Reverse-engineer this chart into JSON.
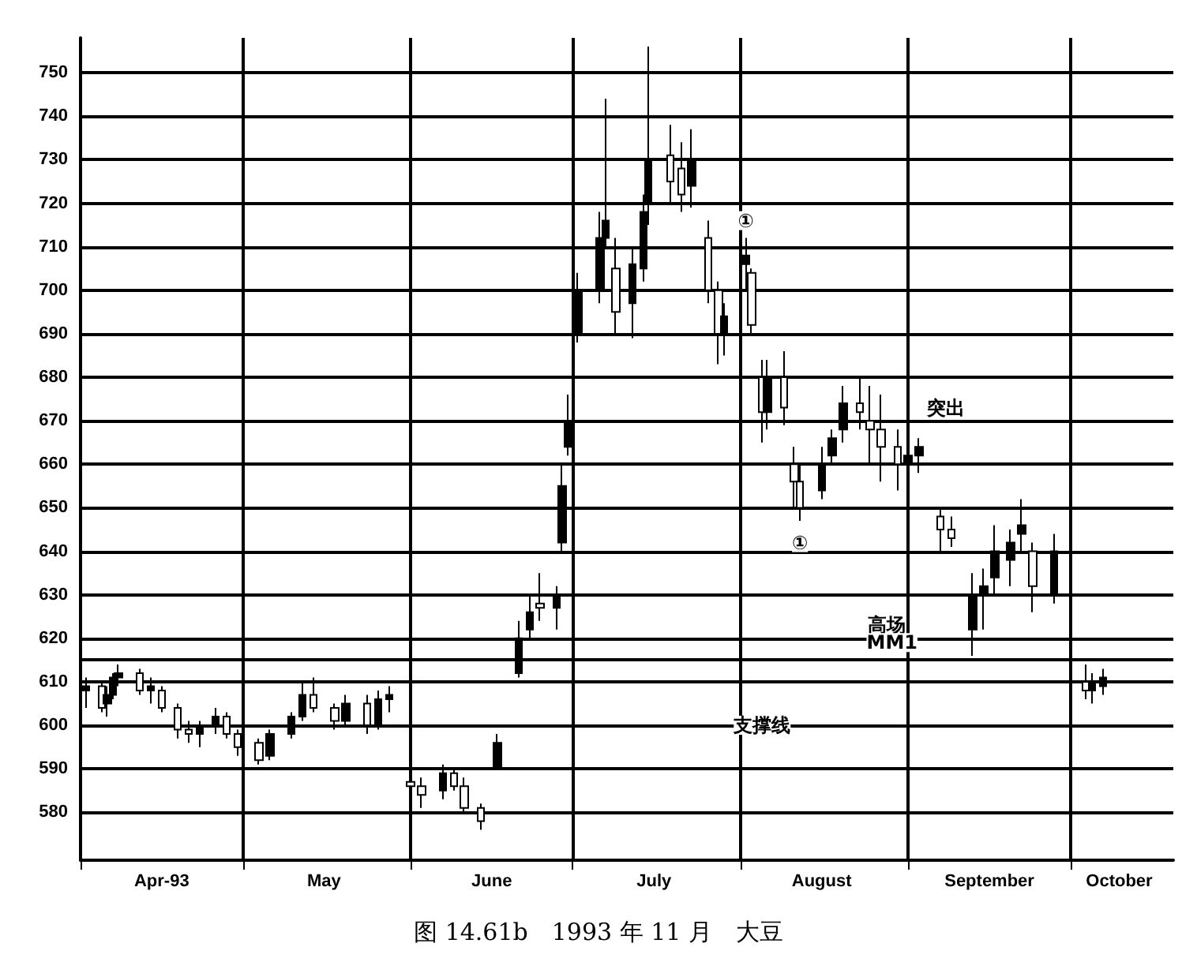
{
  "chart_data": {
    "type": "candlestick",
    "title": "图 14.61b　1993 年 11 月　大豆",
    "x": [
      "1993-04-02",
      "1993-04-05",
      "1993-04-06",
      "1993-04-07",
      "1993-04-08",
      "1993-04-12",
      "1993-04-14",
      "1993-04-16",
      "1993-04-19",
      "1993-04-21",
      "1993-04-23",
      "1993-04-26",
      "1993-04-28",
      "1993-04-30",
      "1993-05-04",
      "1993-05-06",
      "1993-05-10",
      "1993-05-12",
      "1993-05-14",
      "1993-05-18",
      "1993-05-20",
      "1993-05-24",
      "1993-05-26",
      "1993-05-28",
      "1993-06-01",
      "1993-06-03",
      "1993-06-07",
      "1993-06-09",
      "1993-06-11",
      "1993-06-14",
      "1993-06-17",
      "1993-06-21",
      "1993-06-23",
      "1993-06-25",
      "1993-06-28",
      "1993-06-29",
      "1993-06-30",
      "1993-07-02",
      "1993-07-06",
      "1993-07-07",
      "1993-07-09",
      "1993-07-12",
      "1993-07-14",
      "1993-07-15",
      "1993-07-19",
      "1993-07-21",
      "1993-07-23",
      "1993-07-26",
      "1993-07-28",
      "1993-07-29",
      "1993-08-02",
      "1993-08-03",
      "1993-08-05",
      "1993-08-06",
      "1993-08-09",
      "1993-08-11",
      "1993-08-12",
      "1993-08-16",
      "1993-08-18",
      "1993-08-20",
      "1993-08-23",
      "1993-08-25",
      "1993-08-27",
      "1993-08-30",
      "1993-09-01",
      "1993-09-03",
      "1993-09-07",
      "1993-09-09",
      "1993-09-13",
      "1993-09-15",
      "1993-09-17",
      "1993-09-20",
      "1993-09-22",
      "1993-09-24",
      "1993-09-28",
      "1993-10-04",
      "1993-10-05",
      "1993-10-07"
    ],
    "ohlc": [
      [
        608,
        611,
        604,
        609
      ],
      [
        609,
        610,
        603,
        604
      ],
      [
        605,
        609,
        602,
        607
      ],
      [
        607,
        612,
        606,
        611
      ],
      [
        611,
        614,
        609,
        612
      ],
      [
        612,
        613,
        607,
        608
      ],
      [
        608,
        611,
        605,
        609
      ],
      [
        608,
        609,
        603,
        604
      ],
      [
        604,
        605,
        597,
        599
      ],
      [
        599,
        601,
        596,
        598
      ],
      [
        598,
        601,
        595,
        600
      ],
      [
        600,
        604,
        598,
        602
      ],
      [
        602,
        603,
        597,
        598
      ],
      [
        598,
        599,
        593,
        595
      ],
      [
        596,
        597,
        591,
        592
      ],
      [
        593,
        599,
        592,
        598
      ],
      [
        598,
        603,
        597,
        602
      ],
      [
        602,
        610,
        601,
        607
      ],
      [
        607,
        611,
        603,
        604
      ],
      [
        604,
        605,
        599,
        601
      ],
      [
        601,
        607,
        600,
        605
      ],
      [
        605,
        607,
        598,
        600
      ],
      [
        600,
        608,
        599,
        606
      ],
      [
        606,
        609,
        603,
        607
      ],
      [
        587,
        589,
        584,
        586
      ],
      [
        586,
        588,
        581,
        584
      ],
      [
        585,
        591,
        583,
        589
      ],
      [
        589,
        590,
        585,
        586
      ],
      [
        586,
        588,
        580,
        581
      ],
      [
        581,
        582,
        576,
        578
      ],
      [
        590,
        598,
        590,
        596
      ],
      [
        612,
        624,
        611,
        620
      ],
      [
        622,
        630,
        620,
        626
      ],
      [
        628,
        635,
        624,
        627
      ],
      [
        627,
        632,
        622,
        630
      ],
      [
        642,
        660,
        640,
        655
      ],
      [
        664,
        676,
        662,
        670
      ],
      [
        690,
        704,
        688,
        700
      ],
      [
        700,
        718,
        697,
        712
      ],
      [
        712,
        744,
        710,
        716
      ],
      [
        705,
        712,
        690,
        695
      ],
      [
        697,
        710,
        689,
        706
      ],
      [
        705,
        722,
        702,
        718
      ],
      [
        720,
        756,
        715,
        730
      ],
      [
        731,
        738,
        720,
        725
      ],
      [
        728,
        734,
        718,
        722
      ],
      [
        724,
        737,
        719,
        730
      ],
      [
        712,
        716,
        697,
        700
      ],
      [
        700,
        702,
        683,
        690
      ],
      [
        690,
        697,
        685,
        694
      ],
      [
        706,
        712,
        700,
        708
      ],
      [
        704,
        705,
        690,
        692
      ],
      [
        680,
        684,
        665,
        672
      ],
      [
        672,
        684,
        668,
        680
      ],
      [
        680,
        686,
        669,
        673
      ],
      [
        660,
        664,
        650,
        656
      ],
      [
        656,
        660,
        647,
        650
      ],
      [
        654,
        664,
        652,
        660
      ],
      [
        662,
        668,
        660,
        666
      ],
      [
        668,
        678,
        665,
        674
      ],
      [
        674,
        680,
        668,
        672
      ],
      [
        670,
        678,
        660,
        668
      ],
      [
        668,
        676,
        656,
        664
      ],
      [
        664,
        668,
        654,
        660
      ],
      [
        660,
        666,
        655,
        662
      ],
      [
        662,
        666,
        658,
        664
      ],
      [
        648,
        650,
        640,
        645
      ],
      [
        645,
        648,
        641,
        643
      ],
      [
        622,
        635,
        616,
        630
      ],
      [
        630,
        636,
        622,
        632
      ],
      [
        634,
        646,
        630,
        640
      ],
      [
        638,
        645,
        632,
        642
      ],
      [
        644,
        652,
        640,
        646
      ],
      [
        640,
        642,
        626,
        632
      ],
      [
        630,
        644,
        628,
        640
      ],
      [
        610,
        614,
        606,
        608
      ],
      [
        608,
        612,
        605,
        610
      ],
      [
        609,
        613,
        607,
        611
      ]
    ],
    "color": "#000000",
    "xlim": [
      "1993-04-01",
      "1993-10-20"
    ],
    "xticks": [
      {
        "value": "1993-04-01",
        "label": null
      },
      {
        "value": "1993-04-16",
        "label": "Apr-93"
      },
      {
        "value": "1993-05-01",
        "label": null
      },
      {
        "value": "1993-05-16",
        "label": "May"
      },
      {
        "value": "1993-06-01",
        "label": null
      },
      {
        "value": "1993-06-16",
        "label": "June"
      },
      {
        "value": "1993-07-01",
        "label": null
      },
      {
        "value": "1993-07-16",
        "label": "July"
      },
      {
        "value": "1993-08-01",
        "label": null
      },
      {
        "value": "1993-08-16",
        "label": "August"
      },
      {
        "value": "1993-09-01",
        "label": null
      },
      {
        "value": "1993-09-16",
        "label": "September"
      },
      {
        "value": "1993-10-01",
        "label": null
      },
      {
        "value": "1993-10-10",
        "label": "October"
      }
    ],
    "ylim": [
      569,
      758
    ],
    "yticks": [
      580,
      590,
      600,
      610,
      620,
      630,
      640,
      650,
      660,
      670,
      680,
      690,
      700,
      710,
      720,
      730,
      740,
      750
    ],
    "grid": true,
    "ref_lines": [
      {
        "axis": "y",
        "value": 615,
        "color": "#000000"
      }
    ],
    "annotations": [
      {
        "text": "①",
        "x": "1993-08-02",
        "y": 716
      },
      {
        "text": "①",
        "x": "1993-08-12",
        "y": 642
      },
      {
        "text": "突出",
        "x": "1993-09-08",
        "y": 673
      },
      {
        "text": "高场",
        "x": "1993-08-28",
        "y": 623
      },
      {
        "text": "MM1",
        "x": "1993-08-29",
        "y": 619
      },
      {
        "text": "支撑线",
        "x": "1993-08-05",
        "y": 600
      }
    ]
  }
}
